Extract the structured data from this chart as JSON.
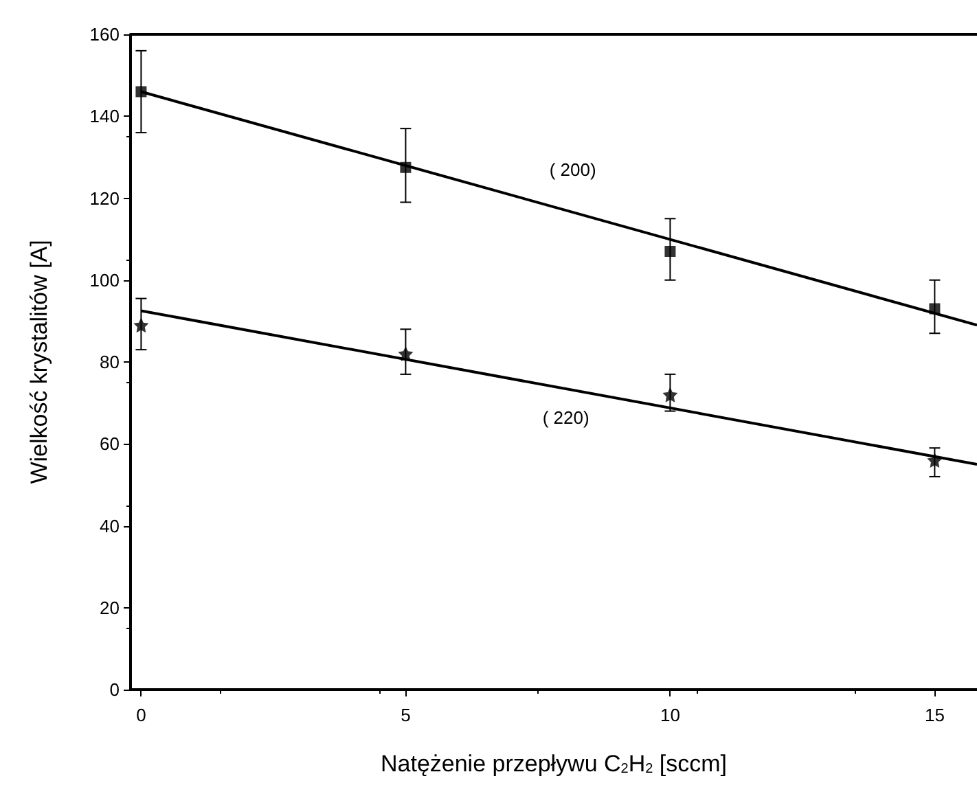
{
  "chart_data": {
    "type": "scatter",
    "xlabel": "Natężenie przepływu C$_{2}$H$_{2}$ [sccm]",
    "ylabel": "Wielkość krystalitów [A]",
    "xlim": [
      -0.2,
      15.8
    ],
    "xticks": [
      0,
      5,
      10,
      15
    ],
    "ylim": [
      0,
      160
    ],
    "yticks": [
      0,
      20,
      40,
      60,
      80,
      100,
      120,
      140,
      160
    ],
    "grid": false,
    "series": [
      {
        "color": "#000000",
        "marker": "square",
        "x": [
          0,
          5,
          10,
          15
        ],
        "values": [
          146,
          127.5,
          107,
          93
        ],
        "errors": [
          [
            136,
            156
          ],
          [
            119,
            137
          ],
          [
            100,
            115
          ],
          [
            87,
            100
          ]
        ]
      },
      {
        "color": "#000000",
        "marker": "star",
        "x": [
          0,
          5,
          10,
          15
        ],
        "values": [
          89,
          82,
          72,
          56
        ],
        "errors": [
          [
            83,
            95.5
          ],
          [
            77,
            88
          ],
          [
            68,
            77
          ],
          [
            52,
            59
          ]
        ]
      },
      {
        "type": "line",
        "name": "( 200)",
        "color": "#000000",
        "x": [
          0,
          15.8
        ],
        "values": [
          146,
          89
        ]
      },
      {
        "type": "line",
        "name": "( 220)",
        "color": "#000000",
        "x": [
          0,
          15.8
        ],
        "values": [
          92.5,
          55
        ]
      }
    ]
  }
}
